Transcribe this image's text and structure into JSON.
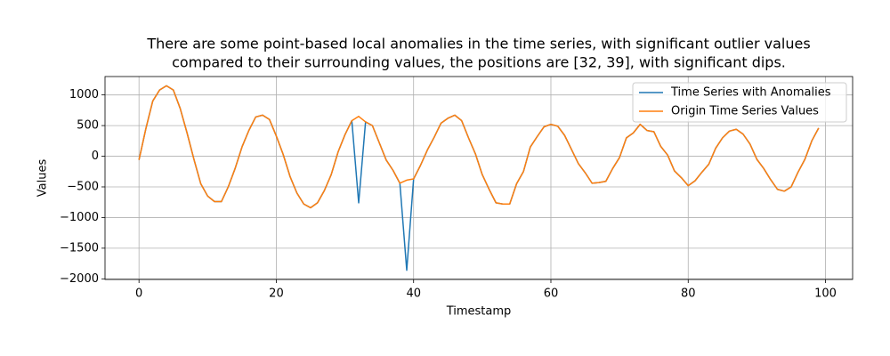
{
  "chart_data": {
    "type": "line",
    "title": [
      "There are some point-based local anomalies in the time series, with significant outlier values",
      "compared to their surrounding values, the positions are [32, 39], with significant dips."
    ],
    "xlabel": "Timestamp",
    "ylabel": "Values",
    "x": [
      0,
      1,
      2,
      3,
      4,
      5,
      6,
      7,
      8,
      9,
      10,
      11,
      12,
      13,
      14,
      15,
      16,
      17,
      18,
      19,
      20,
      21,
      22,
      23,
      24,
      25,
      26,
      27,
      28,
      29,
      30,
      31,
      32,
      33,
      34,
      35,
      36,
      37,
      38,
      39,
      40,
      41,
      42,
      43,
      44,
      45,
      46,
      47,
      48,
      49,
      50,
      51,
      52,
      53,
      54,
      55,
      56,
      57,
      58,
      59,
      60,
      61,
      62,
      63,
      64,
      65,
      66,
      67,
      68,
      69,
      70,
      71,
      72,
      73,
      74,
      75,
      76,
      77,
      78,
      79,
      80,
      81,
      82,
      83,
      84,
      85,
      86,
      87,
      88,
      89,
      90,
      91,
      92,
      93,
      94,
      95,
      96,
      97,
      98,
      99
    ],
    "series": [
      {
        "name": "Time Series with Anomalies",
        "color": "#1f77b4",
        "values": [
          -60,
          450,
          900,
          1080,
          1150,
          1080,
          780,
          380,
          -50,
          -450,
          -650,
          -740,
          -740,
          -500,
          -200,
          150,
          420,
          640,
          670,
          600,
          330,
          30,
          -330,
          -600,
          -780,
          -840,
          -760,
          -560,
          -300,
          70,
          350,
          580,
          -760,
          560,
          500,
          220,
          -60,
          -230,
          -440,
          -1860,
          -370,
          -150,
          100,
          310,
          540,
          620,
          670,
          580,
          300,
          40,
          -300,
          -540,
          -760,
          -780,
          -780,
          -450,
          -250,
          150,
          320,
          480,
          520,
          490,
          340,
          110,
          -120,
          -270,
          -440,
          -430,
          -410,
          -200,
          -20,
          300,
          380,
          520,
          420,
          400,
          160,
          20,
          -240,
          -350,
          -480,
          -400,
          -260,
          -130,
          130,
          300,
          410,
          440,
          360,
          200,
          -50,
          -200,
          -380,
          -540,
          -570,
          -500,
          -260,
          -50,
          250,
          460
        ]
      },
      {
        "name": "Origin Time Series Values",
        "color": "#ff7f0e",
        "values": [
          -60,
          450,
          900,
          1080,
          1150,
          1080,
          780,
          380,
          -50,
          -450,
          -650,
          -740,
          -740,
          -500,
          -200,
          150,
          420,
          640,
          670,
          600,
          330,
          30,
          -330,
          -600,
          -780,
          -840,
          -760,
          -560,
          -300,
          70,
          350,
          580,
          650,
          560,
          500,
          220,
          -60,
          -230,
          -440,
          -390,
          -370,
          -150,
          100,
          310,
          540,
          620,
          670,
          580,
          300,
          40,
          -300,
          -540,
          -760,
          -780,
          -780,
          -450,
          -250,
          150,
          320,
          480,
          520,
          490,
          340,
          110,
          -120,
          -270,
          -440,
          -430,
          -410,
          -200,
          -20,
          300,
          380,
          520,
          420,
          400,
          160,
          20,
          -240,
          -350,
          -480,
          -400,
          -260,
          -130,
          130,
          300,
          410,
          440,
          360,
          200,
          -50,
          -200,
          -380,
          -540,
          -570,
          -500,
          -260,
          -50,
          250,
          460
        ]
      }
    ],
    "xlim": [
      -4.95,
      103.95
    ],
    "xticks": [
      0,
      20,
      40,
      60,
      80,
      100
    ],
    "ylim": [
      -2010,
      1300
    ],
    "yticks": [
      {
        "value": -2000,
        "label": "−2000"
      },
      {
        "value": -1500,
        "label": "−1500"
      },
      {
        "value": -1000,
        "label": "−1000"
      },
      {
        "value": -500,
        "label": "−500"
      },
      0,
      500,
      1000
    ],
    "grid": true,
    "legend": "upper right"
  }
}
